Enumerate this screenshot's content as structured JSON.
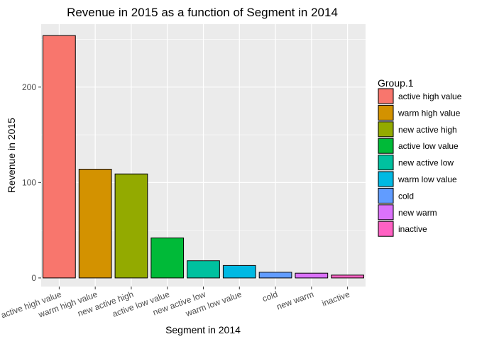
{
  "chart_data": {
    "type": "bar",
    "title": "Revenue in 2015 as a function of Segment in 2014",
    "xlabel": "Segment in 2014",
    "ylabel": "Revenue in 2015",
    "categories": [
      "active high value",
      "warm high value",
      "new active high",
      "active low value",
      "new active low",
      "warm low value",
      "cold",
      "new warm",
      "inactive"
    ],
    "values": [
      254,
      114,
      109,
      42,
      18,
      13,
      6,
      5,
      3
    ],
    "colors": [
      "#F8766D",
      "#D39200",
      "#93AA00",
      "#00BA38",
      "#00C19F",
      "#00B9E3",
      "#619CFF",
      "#DB72FB",
      "#FF61C3"
    ],
    "ylim": [
      -9,
      266
    ],
    "y_ticks": [
      0,
      100,
      200
    ],
    "grid": true,
    "legend": {
      "title": "Group.1",
      "position": "right",
      "entries": [
        "active high value",
        "warm high value",
        "new active high",
        "active low value",
        "new active low",
        "warm low value",
        "cold",
        "new warm",
        "inactive"
      ]
    }
  }
}
